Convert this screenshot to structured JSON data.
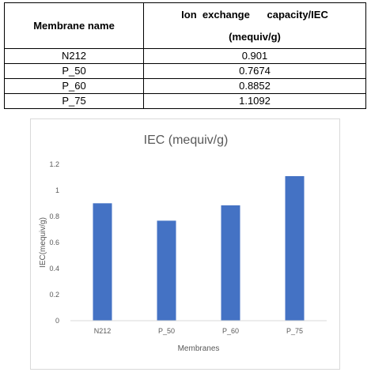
{
  "table": {
    "header": {
      "col1": "Membrane  name",
      "col2_line1": "Ion  exchange      capacity/IEC",
      "col2_line2": "(mequiv/g)"
    },
    "rows": [
      {
        "name": "N212",
        "iec": "0.901"
      },
      {
        "name": "P_50",
        "iec": "0.7674"
      },
      {
        "name": "P_60",
        "iec": "0.8852"
      },
      {
        "name": "P_75",
        "iec": "1.1092"
      }
    ]
  },
  "chart_data": {
    "type": "bar",
    "title": "IEC (mequiv/g)",
    "xlabel": "Membranes",
    "ylabel": "IEC(mequiv/g)",
    "categories": [
      "N212",
      "P_50",
      "P_60",
      "P_75"
    ],
    "values": [
      0.901,
      0.7674,
      0.8852,
      1.1092
    ],
    "ylim": [
      0,
      1.2
    ],
    "yticks": [
      0,
      0.2,
      0.4,
      0.6,
      0.8,
      1,
      1.2
    ],
    "ytick_labels": [
      "0",
      "0.2",
      "0.4",
      "0.6",
      "0.8",
      "1",
      "1.2"
    ],
    "grid": false,
    "legend": "none",
    "bar_color": "#4472c4"
  }
}
